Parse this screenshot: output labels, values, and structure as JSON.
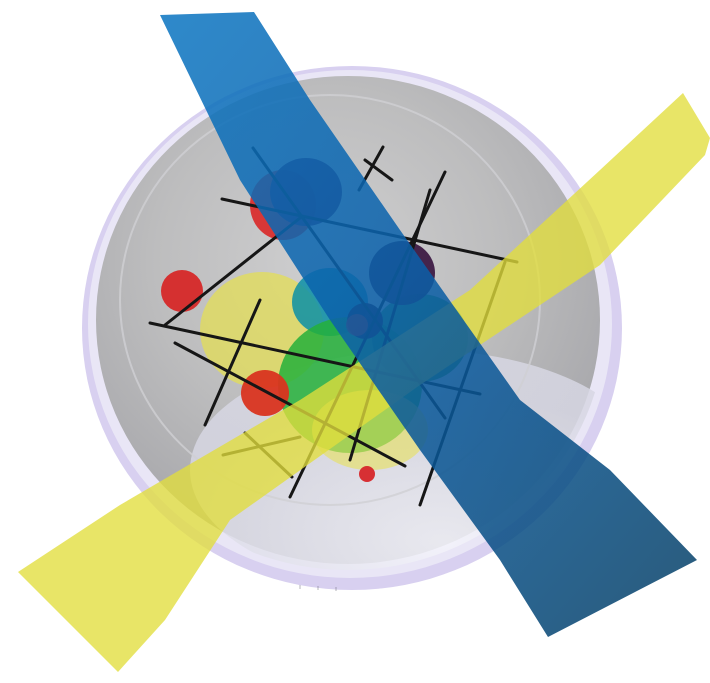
{
  "scene": {
    "subject": "bowl-with-colored-transparent-films",
    "colors": {
      "background": "#ffffff",
      "bowl_rim": "#d9d2f2",
      "bowl_inner": "#b9b9ba",
      "bowl_shadow": "#a9b2c8",
      "blue_strip": "#0b6eb8",
      "yellow_strip": "#e1de3c",
      "red_disc": "#d92a2a",
      "green_disc": "#1ea83a",
      "teal_disc": "#0a8fa6",
      "purple_disc": "#4b1e55",
      "black_line": "#161616"
    }
  }
}
